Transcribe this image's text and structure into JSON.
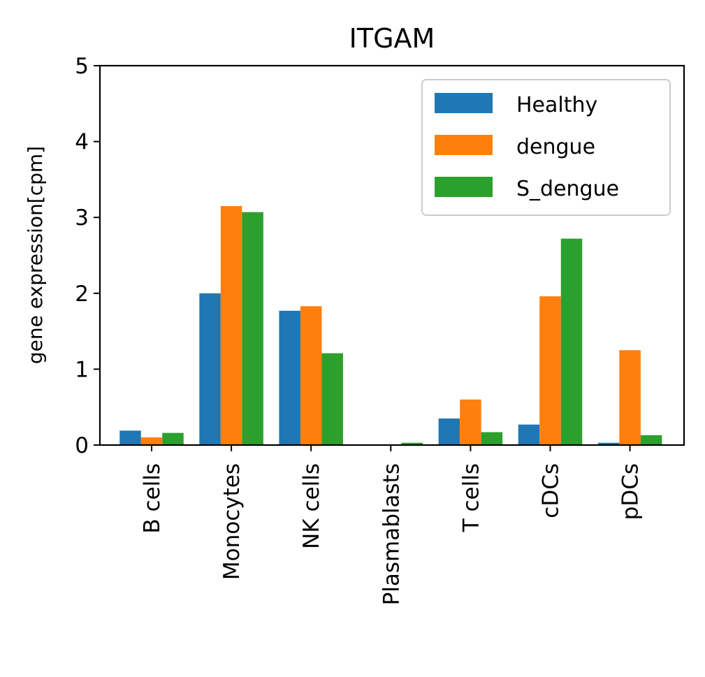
{
  "chart_data": {
    "type": "bar",
    "title": "ITGAM",
    "xlabel": "",
    "ylabel": "gene expression[cpm]",
    "ylim": [
      0,
      5
    ],
    "yticks": [
      "0",
      "1",
      "2",
      "3",
      "4",
      "5"
    ],
    "categories": [
      "B cells",
      "Monocytes",
      "NK cells",
      "Plasmablasts",
      "T cells",
      "cDCs",
      "pDCs"
    ],
    "series": [
      {
        "name": "Healthy",
        "color": "#1f77b4",
        "values": [
          0.19,
          2.0,
          1.77,
          0.0,
          0.35,
          0.27,
          0.03
        ]
      },
      {
        "name": "dengue",
        "color": "#ff7f0e",
        "values": [
          0.1,
          3.15,
          1.83,
          0.0,
          0.6,
          1.96,
          1.25
        ]
      },
      {
        "name": "S_dengue",
        "color": "#2ca02c",
        "values": [
          0.16,
          3.07,
          1.21,
          0.03,
          0.17,
          2.72,
          0.13
        ]
      }
    ],
    "legend": {
      "placement": "top-right"
    },
    "grid": false
  }
}
